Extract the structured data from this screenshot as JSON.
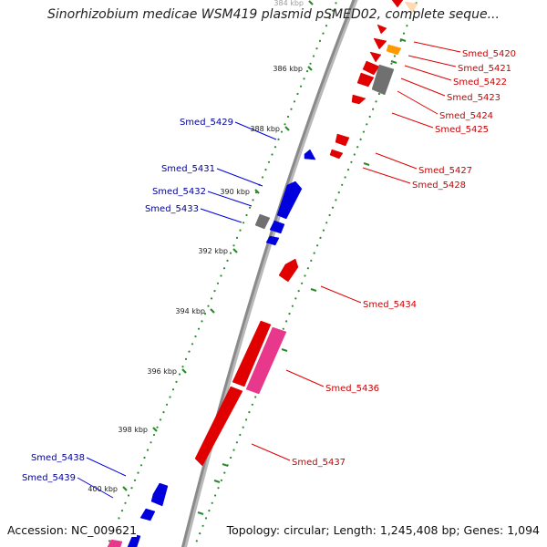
{
  "title": "Sinorhizobium medicae WSM419 plasmid pSMED02, complete seque...",
  "footer": {
    "accession": "Accession: NC_009621",
    "topology": "Topology: circular; Length: 1,245,408 bp; Genes: 1,094"
  },
  "colors": {
    "forward": "#e00000",
    "reverse": "#0000dd",
    "forward_label": "#cc0000",
    "reverse_label": "#000099",
    "rna": "#e8388c",
    "pseudo": "#707070",
    "other": "#ff9900",
    "faint": "#ffd9b0",
    "backbone": "#8a8a8a",
    "dots": "#2a8a2a"
  },
  "kbp_ticks": [
    {
      "label": "384 kbp",
      "kbp": 384
    },
    {
      "label": "386 kbp",
      "kbp": 386
    },
    {
      "label": "388 kbp",
      "kbp": 388
    },
    {
      "label": "390 kbp",
      "kbp": 390
    },
    {
      "label": "392 kbp",
      "kbp": 392
    },
    {
      "label": "394 kbp",
      "kbp": 394
    },
    {
      "label": "396 kbp",
      "kbp": 396
    },
    {
      "label": "398 kbp",
      "kbp": 398
    },
    {
      "label": "400 kbp",
      "kbp": 400
    }
  ],
  "forward_labels": [
    "Smed_5420",
    "Smed_5421",
    "Smed_5422",
    "Smed_5423",
    "Smed_5424",
    "Smed_5425",
    "Smed_5427",
    "Smed_5428",
    "Smed_5434",
    "Smed_5436",
    "Smed_5437"
  ],
  "reverse_labels": [
    "Smed_5429",
    "Smed_5431",
    "Smed_5432",
    "Smed_5433",
    "Smed_5438",
    "Smed_5439"
  ]
}
